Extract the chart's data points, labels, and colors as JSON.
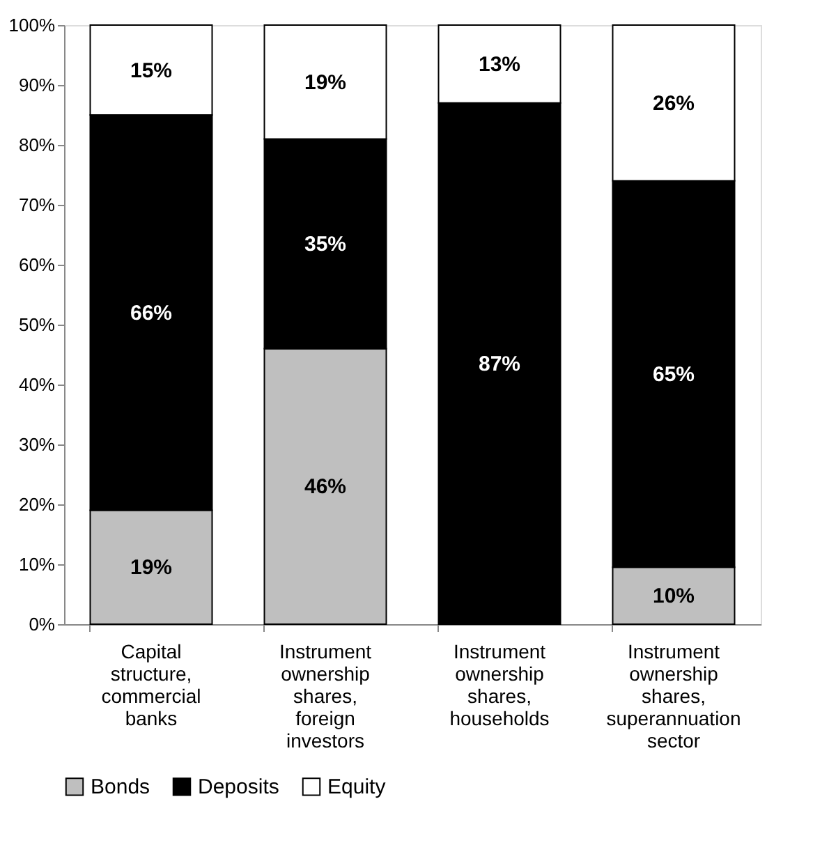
{
  "chart_data": {
    "type": "bar",
    "stacked": true,
    "categories": [
      "Capital structure, commercial banks",
      "Instrument ownership shares, foreign investors",
      "Instrument ownership shares, households",
      "Instrument ownership shares, superannuation sector"
    ],
    "series": [
      {
        "name": "Bonds",
        "color": "#bfbfbf",
        "values": [
          19,
          46,
          0,
          9.5
        ],
        "value_labels": [
          "19%",
          "46%",
          null,
          "10%"
        ]
      },
      {
        "name": "Deposits",
        "color": "#000000",
        "values": [
          66,
          35,
          87,
          64.5
        ],
        "value_labels": [
          "66%",
          "35%",
          "87%",
          "65%"
        ]
      },
      {
        "name": "Equity",
        "color": "#ffffff",
        "values": [
          15,
          19,
          13,
          26
        ],
        "value_labels": [
          "15%",
          "19%",
          "13%",
          "26%"
        ]
      }
    ],
    "ylim": [
      0,
      100
    ],
    "yticks": [
      {
        "value": 0,
        "label": "0%"
      },
      {
        "value": 10,
        "label": "10%"
      },
      {
        "value": 20,
        "label": "20%"
      },
      {
        "value": 30,
        "label": "30%"
      },
      {
        "value": 40,
        "label": "40%"
      },
      {
        "value": 50,
        "label": "50%"
      },
      {
        "value": 60,
        "label": "60%"
      },
      {
        "value": 70,
        "label": "70%"
      },
      {
        "value": 80,
        "label": "80%"
      },
      {
        "value": 90,
        "label": "90%"
      },
      {
        "value": 100,
        "label": "100%"
      }
    ],
    "grid": false,
    "legend": "bottom"
  }
}
